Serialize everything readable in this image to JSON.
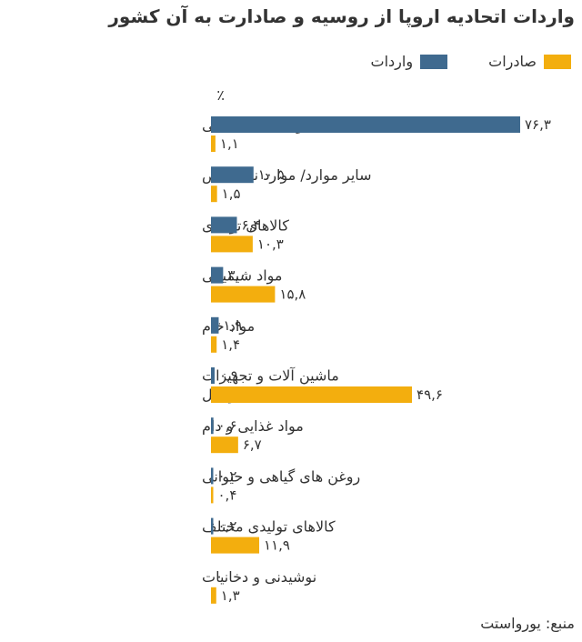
{
  "chart_data": {
    "type": "bar",
    "orientation": "horizontal",
    "title": "واردات اتحادیه اروپا از روسیه و صادارت به آن کشور",
    "unit": "٪",
    "source": "منبع: یورواستت",
    "legend_position": "top-right",
    "grid": false,
    "xlim": [
      0,
      76.3
    ],
    "categories": [
      "سوخت های معدنی",
      "سایر موارد/ موارد نامشخص",
      "کالاهای تولیدی",
      "مواد شیمیایی",
      "مواد خام",
      "ماشین آلات و تجهیزات حمل و نقل",
      "مواد غذایی و دام",
      "روغن های گیاهی و حیوانی",
      "کالاهای تولیدی مختلف",
      "نوشیدنی و دخانیات"
    ],
    "category_lines": [
      [
        "سوخت های معدنی"
      ],
      [
        "سایر موارد/ موارد نامشخص"
      ],
      [
        "کالاهای تولیدی"
      ],
      [
        "مواد شیمیایی"
      ],
      [
        "مواد خام"
      ],
      [
        "ماشین آلات و تجهیزات",
        "حمل و نقل"
      ],
      [
        "مواد غذایی و دام"
      ],
      [
        "روغن های گیاهی و حیوانی"
      ],
      [
        "کالاهای تولیدی مختلف"
      ],
      [
        "نوشیدنی و دخانیات"
      ]
    ],
    "series": [
      {
        "name": "واردات",
        "color": "#3f6a8f",
        "values": [
          76.3,
          10.5,
          6.4,
          3.0,
          1.9,
          0.9,
          0.6,
          0.2,
          0.2,
          0
        ],
        "labels": [
          "۷۶,۳",
          "۱۰,۵",
          "۶,۴",
          "۳,۰",
          "۱,۹",
          "۰,۹",
          "۰,۶",
          "۰,۲",
          "۰,۲",
          "۰"
        ]
      },
      {
        "name": "صادرات",
        "color": "#f3ae0e",
        "values": [
          1.1,
          1.5,
          10.3,
          15.8,
          1.4,
          49.6,
          6.7,
          0.4,
          11.9,
          1.3
        ],
        "labels": [
          "۱,۱",
          "۱,۵",
          "۱۰,۳",
          "۱۵,۸",
          "۱,۴",
          "۴۹,۶",
          "۶,۷",
          "۰,۴",
          "۱۱,۹",
          "۱,۳"
        ]
      }
    ]
  }
}
